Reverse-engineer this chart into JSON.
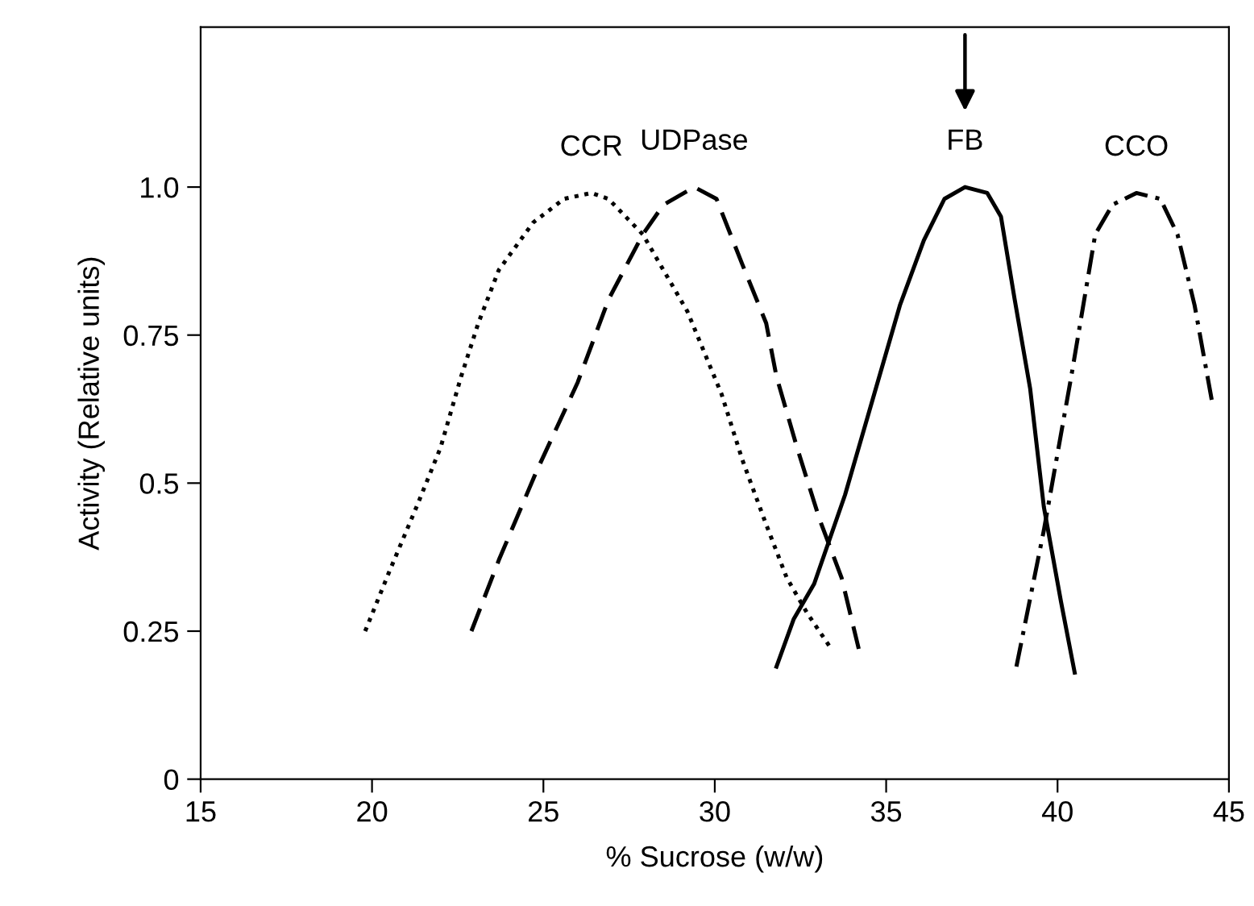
{
  "chart_data": {
    "type": "line",
    "xlabel": "% Sucrose (w/w)",
    "ylabel": "Activity (Relative units)",
    "xlim": [
      15,
      45
    ],
    "ylim": [
      0,
      1.27
    ],
    "xticks": [
      15,
      20,
      25,
      30,
      35,
      40,
      45
    ],
    "yticks": [
      0,
      0.25,
      0.5,
      0.75,
      {
        "value": 1.0,
        "label": "1.0"
      }
    ],
    "grid": false,
    "legend": false,
    "marker": "none",
    "series": [
      {
        "name": "CCR",
        "color": "#000000",
        "line_style": "dotted",
        "x": [
          19.8,
          20.5,
          21.3,
          22.0,
          22.6,
          23.1,
          23.7,
          24.7,
          25.6,
          26.4,
          26.9,
          27.9,
          29.2,
          30.2,
          30.8,
          31.5,
          32.1,
          32.7,
          33.4
        ],
        "values": [
          0.25,
          0.35,
          0.46,
          0.56,
          0.68,
          0.77,
          0.86,
          0.94,
          0.98,
          0.99,
          0.98,
          0.92,
          0.79,
          0.65,
          0.54,
          0.43,
          0.34,
          0.28,
          0.22
        ]
      },
      {
        "name": "UDPase",
        "color": "#000000",
        "line_style": "dashed",
        "x": [
          22.9,
          23.7,
          24.8,
          26.0,
          26.9,
          27.9,
          28.5,
          29.4,
          30.05,
          30.8,
          31.5,
          31.8,
          32.4,
          33.05,
          33.7,
          34.2
        ],
        "values": [
          0.25,
          0.37,
          0.52,
          0.67,
          0.81,
          0.92,
          0.97,
          1.0,
          0.98,
          0.87,
          0.77,
          0.68,
          0.56,
          0.44,
          0.34,
          0.22
        ]
      },
      {
        "color": "#000000",
        "line_style": "solid",
        "x": [
          31.8,
          32.3,
          32.9,
          33.8,
          34.6,
          35.4,
          36.1,
          36.7,
          37.3,
          37.95,
          38.35,
          38.75,
          39.2,
          39.6,
          40.1,
          40.5
        ],
        "values": [
          0.19,
          0.27,
          0.33,
          0.48,
          0.64,
          0.8,
          0.91,
          0.98,
          1.0,
          0.99,
          0.95,
          0.81,
          0.66,
          0.46,
          0.3,
          0.18
        ]
      },
      {
        "name": "CCO",
        "color": "#000000",
        "line_style": "dashdot",
        "x": [
          38.8,
          39.6,
          40.4,
          41.1,
          41.6,
          42.3,
          43.0,
          43.5,
          44.0,
          44.5
        ],
        "values": [
          0.19,
          0.42,
          0.68,
          0.92,
          0.97,
          0.99,
          0.98,
          0.92,
          0.8,
          0.64
        ]
      }
    ],
    "annotations": [
      {
        "text": "FB",
        "x": 37.3,
        "y": 1.0
      }
    ]
  }
}
